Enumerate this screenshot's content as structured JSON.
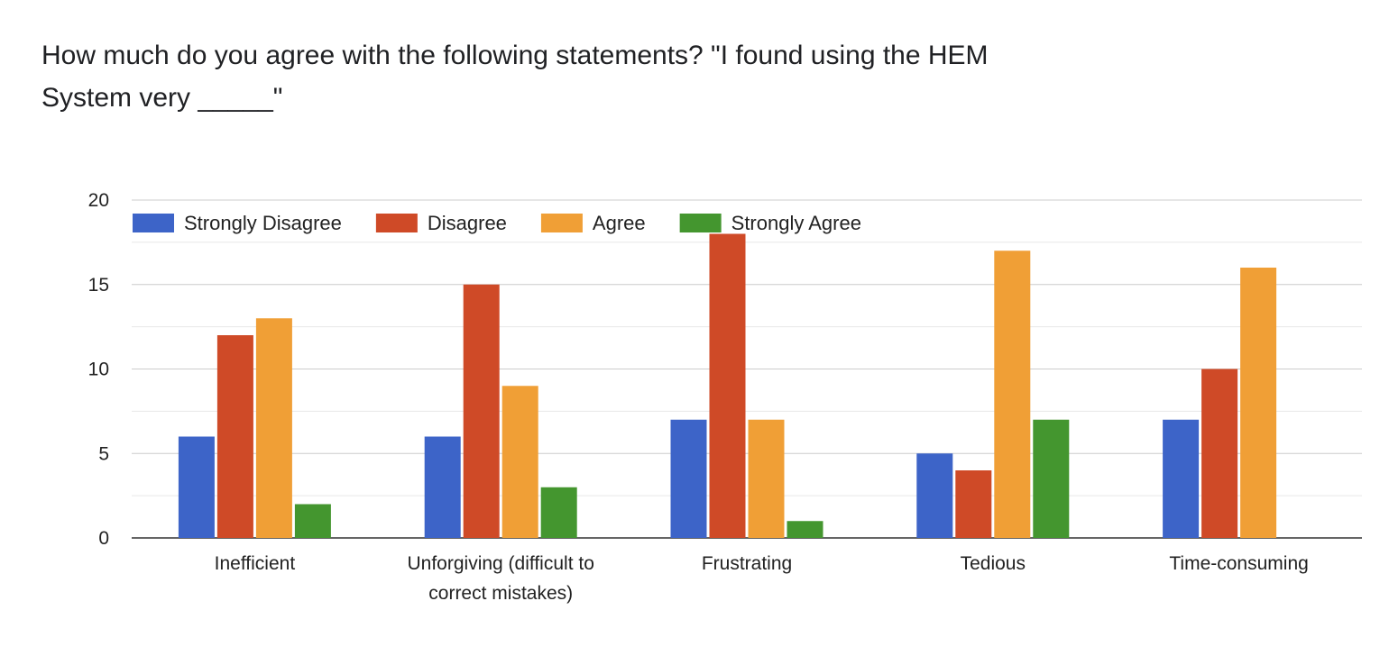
{
  "title_line1": "How much do you agree with the following statements? \"I found using the HEM",
  "title_line2": "System very _____\"",
  "chart_data": {
    "type": "bar",
    "categories": [
      [
        "Inefficient"
      ],
      [
        "Unforgiving (difficult to",
        "correct mistakes)"
      ],
      [
        "Frustrating"
      ],
      [
        "Tedious"
      ],
      [
        "Time-consuming"
      ]
    ],
    "series": [
      {
        "name": "Strongly Disagree",
        "color": "#3d64c8",
        "values": [
          6,
          6,
          7,
          5,
          7
        ]
      },
      {
        "name": "Disagree",
        "color": "#cf4a27",
        "values": [
          12,
          15,
          18,
          4,
          10
        ]
      },
      {
        "name": "Agree",
        "color": "#f09f36",
        "values": [
          13,
          9,
          7,
          17,
          16
        ]
      },
      {
        "name": "Strongly Agree",
        "color": "#44962f",
        "values": [
          2,
          3,
          1,
          7,
          0
        ]
      }
    ],
    "ylim": [
      0,
      20
    ],
    "yticks": [
      0,
      5,
      10,
      15,
      20
    ],
    "grid": true,
    "legend_position": "top-left"
  }
}
